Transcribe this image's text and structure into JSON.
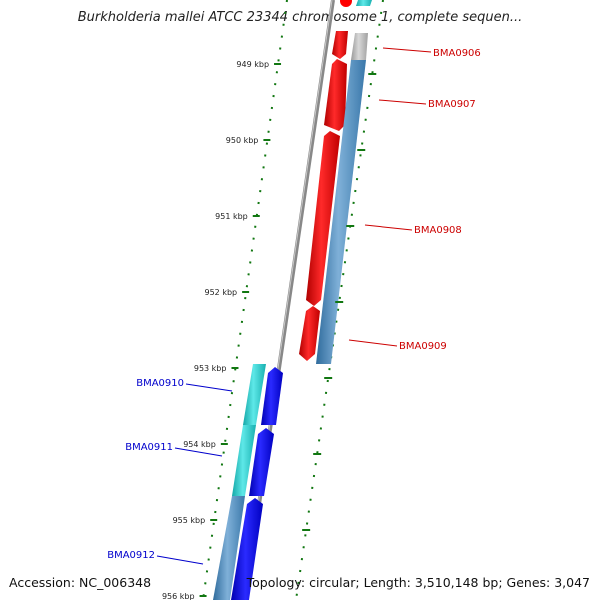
{
  "title": "Burkholderia mallei ATCC 23344 chromosome 1, complete sequen...",
  "footer": {
    "accession": "Accession: NC_006348",
    "summary": "Topology: circular; Length: 3,510,148 bp; Genes: 3,047"
  },
  "scale_labels": [
    "949 kbp",
    "950 kbp",
    "951 kbp",
    "952 kbp",
    "953 kbp",
    "954 kbp",
    "955 kbp",
    "956 kbp"
  ],
  "genes": [
    {
      "name": "BMA0906",
      "color": "#cc0000"
    },
    {
      "name": "BMA0907",
      "color": "#cc0000"
    },
    {
      "name": "BMA0908",
      "color": "#cc0000"
    },
    {
      "name": "BMA0909",
      "color": "#cc0000"
    },
    {
      "name": "BMA0910",
      "color": "#0000cc"
    },
    {
      "name": "BMA0911",
      "color": "#0000cc"
    },
    {
      "name": "BMA0912",
      "color": "#0000cc"
    }
  ],
  "colors": {
    "forward_cds": "#ff0000",
    "reverse_cds": "#0000ff",
    "cyan_feature": "#22cccc",
    "steelblue_feature": "#4682b4",
    "gray_feature": "#b0b0b0",
    "backbone": "#888888",
    "tick": "#117711"
  }
}
